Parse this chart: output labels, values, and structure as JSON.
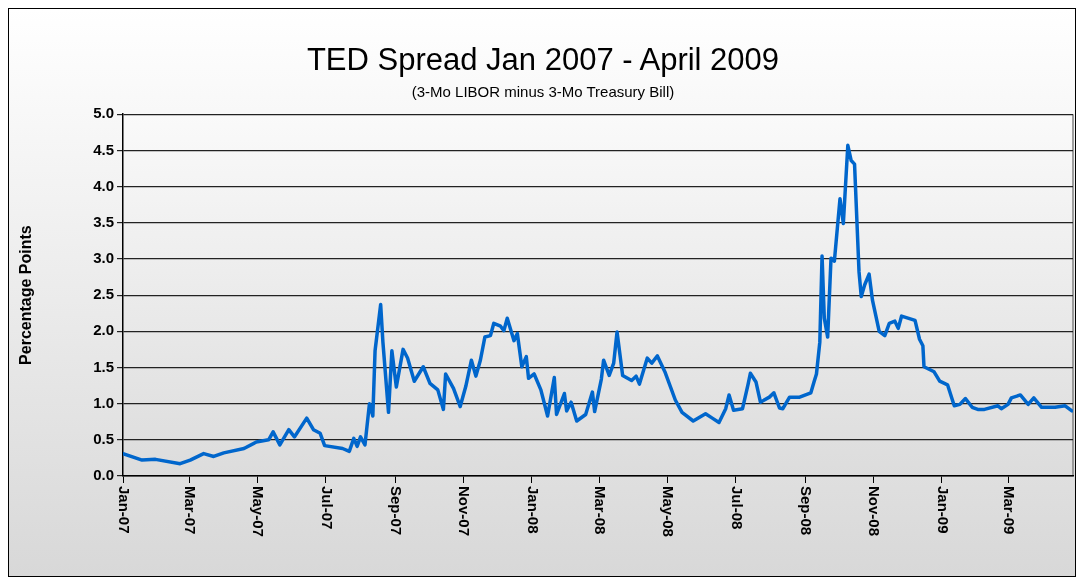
{
  "chart_data": {
    "type": "line",
    "title": "TED Spread Jan 2007 - April 2009",
    "subtitle": "(3-Mo LIBOR minus 3-Mo Treasury Bill)",
    "ylabel": "Percentage Points",
    "x": [
      "2007-01-01",
      "2007-01-18",
      "2007-01-30",
      "2007-02-21",
      "2007-03-02",
      "2007-03-14",
      "2007-03-23",
      "2007-04-01",
      "2007-04-19",
      "2007-04-30",
      "2007-05-11",
      "2007-05-15",
      "2007-05-21",
      "2007-05-29",
      "2007-06-03",
      "2007-06-14",
      "2007-06-20",
      "2007-06-26",
      "2007-06-30",
      "2007-07-16",
      "2007-07-22",
      "2007-07-26",
      "2007-07-29",
      "2007-08-01",
      "2007-08-05",
      "2007-08-09",
      "2007-08-12",
      "2007-08-14",
      "2007-08-19",
      "2007-08-21",
      "2007-08-26",
      "2007-08-29",
      "2007-09-02",
      "2007-09-08",
      "2007-09-12",
      "2007-09-18",
      "2007-09-26",
      "2007-10-02",
      "2007-10-09",
      "2007-10-14",
      "2007-10-16",
      "2007-10-23",
      "2007-10-29",
      "2007-11-03",
      "2007-11-08",
      "2007-11-12",
      "2007-11-16",
      "2007-11-20",
      "2007-11-25",
      "2007-11-28",
      "2007-12-04",
      "2007-12-07",
      "2007-12-10",
      "2007-12-16",
      "2007-12-19",
      "2007-12-23",
      "2007-12-27",
      "2007-12-29",
      "2008-01-03",
      "2008-01-09",
      "2008-01-15",
      "2008-01-21",
      "2008-01-23",
      "2008-01-30",
      "2008-02-01",
      "2008-02-05",
      "2008-02-10",
      "2008-02-18",
      "2008-02-24",
      "2008-02-26",
      "2008-03-03",
      "2008-03-05",
      "2008-03-10",
      "2008-03-14",
      "2008-03-17",
      "2008-03-22",
      "2008-03-30",
      "2008-04-03",
      "2008-04-06",
      "2008-04-13",
      "2008-04-17",
      "2008-04-22",
      "2008-04-29",
      "2008-05-08",
      "2008-05-14",
      "2008-05-24",
      "2008-06-04",
      "2008-06-10",
      "2008-06-16",
      "2008-06-22",
      "2008-06-25",
      "2008-06-29",
      "2008-07-07",
      "2008-07-12",
      "2008-07-14",
      "2008-07-19",
      "2008-07-23",
      "2008-07-31",
      "2008-08-04",
      "2008-08-09",
      "2008-08-12",
      "2008-08-18",
      "2008-08-27",
      "2008-09-06",
      "2008-09-09",
      "2008-09-11",
      "2008-09-14",
      "2008-09-16",
      "2008-09-18",
      "2008-09-21",
      "2008-09-24",
      "2008-09-27",
      "2008-10-02",
      "2008-10-05",
      "2008-10-09",
      "2008-10-12",
      "2008-10-15",
      "2008-10-19",
      "2008-10-21",
      "2008-10-24",
      "2008-10-28",
      "2008-10-31",
      "2008-11-06",
      "2008-11-11",
      "2008-11-15",
      "2008-11-20",
      "2008-11-23",
      "2008-11-26",
      "2008-12-08",
      "2008-12-12",
      "2008-12-15",
      "2008-12-16",
      "2008-12-25",
      "2008-12-30",
      "2009-01-06",
      "2009-01-12",
      "2009-01-17",
      "2009-01-22",
      "2009-01-28",
      "2009-02-02",
      "2009-02-08",
      "2009-02-20",
      "2009-02-23",
      "2009-03-01",
      "2009-03-04",
      "2009-03-12",
      "2009-03-19",
      "2009-03-24",
      "2009-03-31",
      "2009-04-12",
      "2009-04-21",
      "2009-04-27"
    ],
    "series": [
      {
        "color": "#0066cc",
        "values": [
          0.31,
          0.22,
          0.23,
          0.17,
          0.22,
          0.31,
          0.27,
          0.32,
          0.38,
          0.47,
          0.5,
          0.61,
          0.43,
          0.64,
          0.54,
          0.8,
          0.64,
          0.59,
          0.42,
          0.38,
          0.34,
          0.52,
          0.41,
          0.54,
          0.43,
          1.0,
          0.83,
          1.73,
          2.37,
          1.85,
          0.88,
          1.73,
          1.23,
          1.75,
          1.63,
          1.31,
          1.51,
          1.28,
          1.19,
          0.92,
          1.41,
          1.21,
          0.96,
          1.24,
          1.6,
          1.38,
          1.6,
          1.92,
          1.94,
          2.11,
          2.07,
          2.01,
          2.18,
          1.87,
          1.97,
          1.51,
          1.65,
          1.35,
          1.41,
          1.19,
          0.83,
          1.36,
          0.85,
          1.14,
          0.9,
          1.02,
          0.76,
          0.85,
          1.16,
          0.89,
          1.34,
          1.6,
          1.39,
          1.56,
          1.99,
          1.39,
          1.32,
          1.38,
          1.27,
          1.63,
          1.56,
          1.66,
          1.43,
          1.05,
          0.88,
          0.76,
          0.86,
          0.8,
          0.74,
          0.93,
          1.12,
          0.91,
          0.93,
          1.27,
          1.42,
          1.3,
          1.02,
          1.09,
          1.15,
          0.94,
          0.93,
          1.09,
          1.09,
          1.15,
          1.31,
          1.41,
          1.85,
          3.04,
          2.18,
          1.92,
          3.01,
          2.97,
          3.83,
          3.49,
          4.57,
          4.36,
          4.31,
          2.82,
          2.48,
          2.64,
          2.79,
          2.43,
          2.0,
          1.94,
          2.11,
          2.14,
          2.04,
          2.21,
          2.15,
          1.89,
          1.8,
          1.51,
          1.44,
          1.31,
          1.26,
          0.97,
          0.99,
          1.07,
          0.95,
          0.92,
          0.92,
          0.97,
          0.93,
          0.99,
          1.08,
          1.12,
          0.99,
          1.08,
          0.95,
          0.95,
          0.97,
          0.9
        ]
      }
    ],
    "xlim": [
      "2007-01-01",
      "2009-04-28"
    ],
    "xticks": [
      {
        "value": "2007-01",
        "label": "Jan-07"
      },
      {
        "value": "2007-03",
        "label": "Mar-07"
      },
      {
        "value": "2007-05",
        "label": "May-07"
      },
      {
        "value": "2007-07",
        "label": "Jul-07"
      },
      {
        "value": "2007-09",
        "label": "Sep-07"
      },
      {
        "value": "2007-11",
        "label": "Nov-07"
      },
      {
        "value": "2008-01",
        "label": "Jan-08"
      },
      {
        "value": "2008-03",
        "label": "Mar-08"
      },
      {
        "value": "2008-05",
        "label": "May-08"
      },
      {
        "value": "2008-07",
        "label": "Jul-08"
      },
      {
        "value": "2008-09",
        "label": "Sep-08"
      },
      {
        "value": "2008-11",
        "label": "Nov-08"
      },
      {
        "value": "2009-01",
        "label": "Jan-09"
      },
      {
        "value": "2009-03",
        "label": "Mar-09"
      }
    ],
    "ylim": [
      0,
      5
    ],
    "yticks": [
      {
        "value": 0,
        "label": "0.0"
      },
      {
        "value": 0.5,
        "label": "0.5"
      },
      {
        "value": 1,
        "label": "1.0"
      },
      {
        "value": 1.5,
        "label": "1.5"
      },
      {
        "value": 2,
        "label": "2.0"
      },
      {
        "value": 2.5,
        "label": "2.5"
      },
      {
        "value": 3,
        "label": "3.0"
      },
      {
        "value": 3.5,
        "label": "3.5"
      },
      {
        "value": 4,
        "label": "4.0"
      },
      {
        "value": 4.5,
        "label": "4.5"
      },
      {
        "value": 5,
        "label": "5.0"
      }
    ],
    "grid": "y",
    "legend": false
  }
}
